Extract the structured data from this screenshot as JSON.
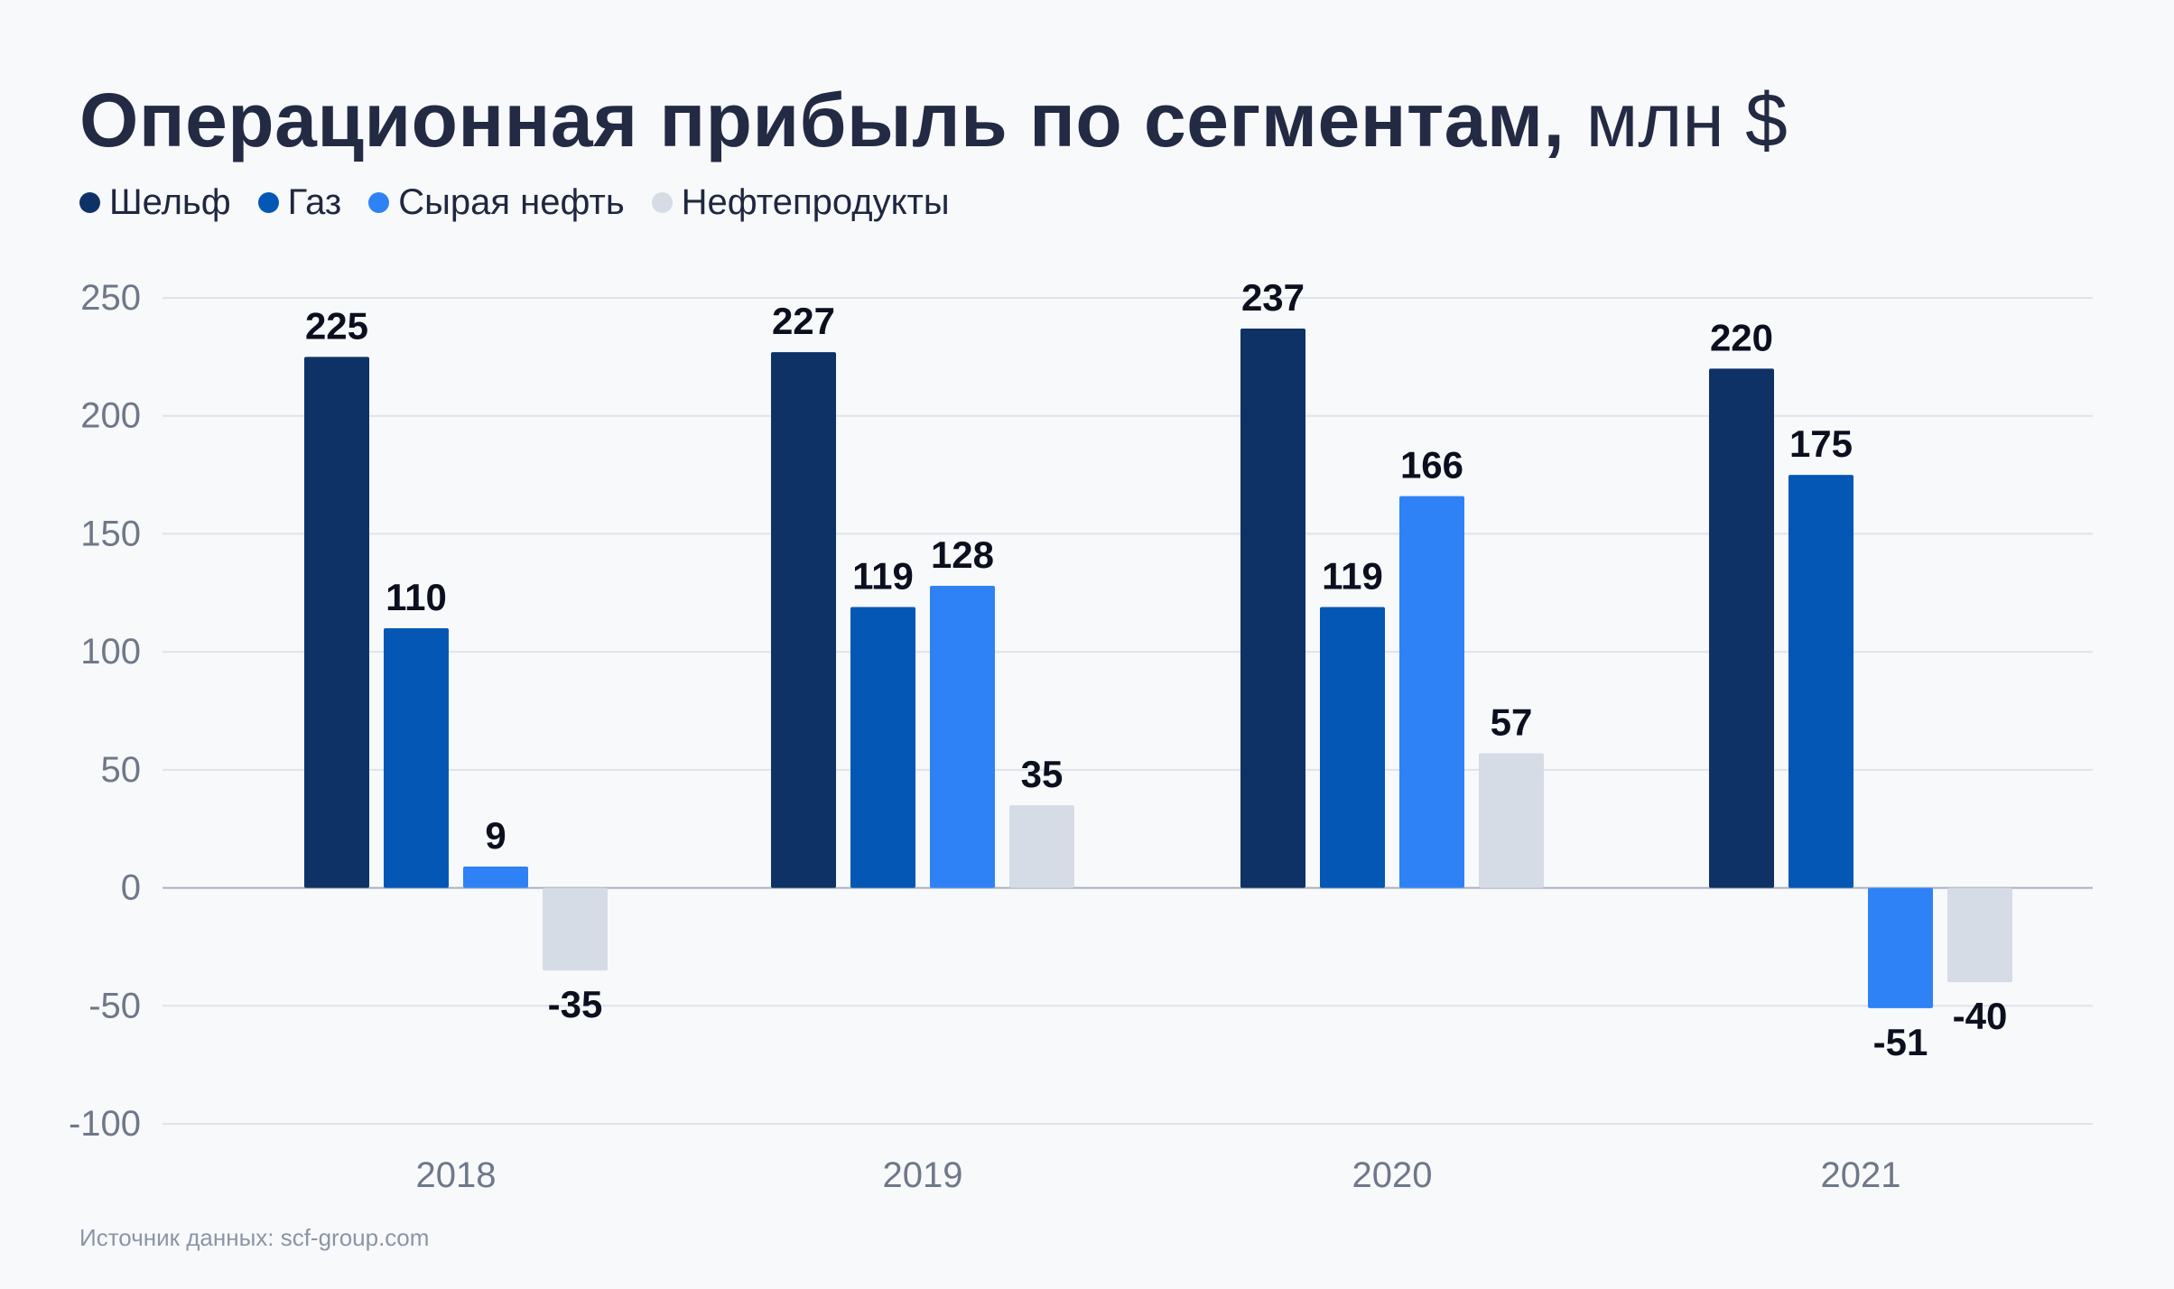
{
  "title": {
    "main": "Операционная прибыль по сегментам,",
    "unit": "млн $"
  },
  "source": "Источник данных: scf-group.com",
  "colors": {
    "background": "#f7f9fb",
    "gridline": "#dfe3ea",
    "zeroline": "#a9b0bd",
    "axis_text": "#6f7889",
    "label_text": "#0b0f1e"
  },
  "chart_data": {
    "type": "bar",
    "title": "Операционная прибыль по сегментам, млн $",
    "xlabel": "",
    "ylabel": "",
    "categories": [
      "2018",
      "2019",
      "2020",
      "2021"
    ],
    "ylim": [
      -100,
      250
    ],
    "yticks": [
      250,
      200,
      150,
      100,
      50,
      0,
      -50,
      -100
    ],
    "ytick_labels": [
      "250",
      "200",
      "150",
      "100",
      "50",
      "0",
      "-50",
      "-100"
    ],
    "grid": true,
    "legend_position": "top-left",
    "series": [
      {
        "name": "Шельф",
        "color": "#0f3266",
        "values": [
          225,
          227,
          237,
          220
        ],
        "labels": [
          "225",
          "227",
          "237",
          "220"
        ]
      },
      {
        "name": "Газ",
        "color": "#0457b5",
        "values": [
          110,
          119,
          119,
          175
        ],
        "labels": [
          "110",
          "119",
          "119",
          "175"
        ]
      },
      {
        "name": "Сырая нефть",
        "color": "#2f82f6",
        "values": [
          9,
          128,
          166,
          -51
        ],
        "labels": [
          "9",
          "128",
          "166",
          "-51"
        ]
      },
      {
        "name": "Нефтепродукты",
        "color": "#d6dce6",
        "values": [
          -35,
          35,
          57,
          -40
        ],
        "labels": [
          "-35",
          "35",
          "57",
          "-40"
        ]
      }
    ]
  }
}
